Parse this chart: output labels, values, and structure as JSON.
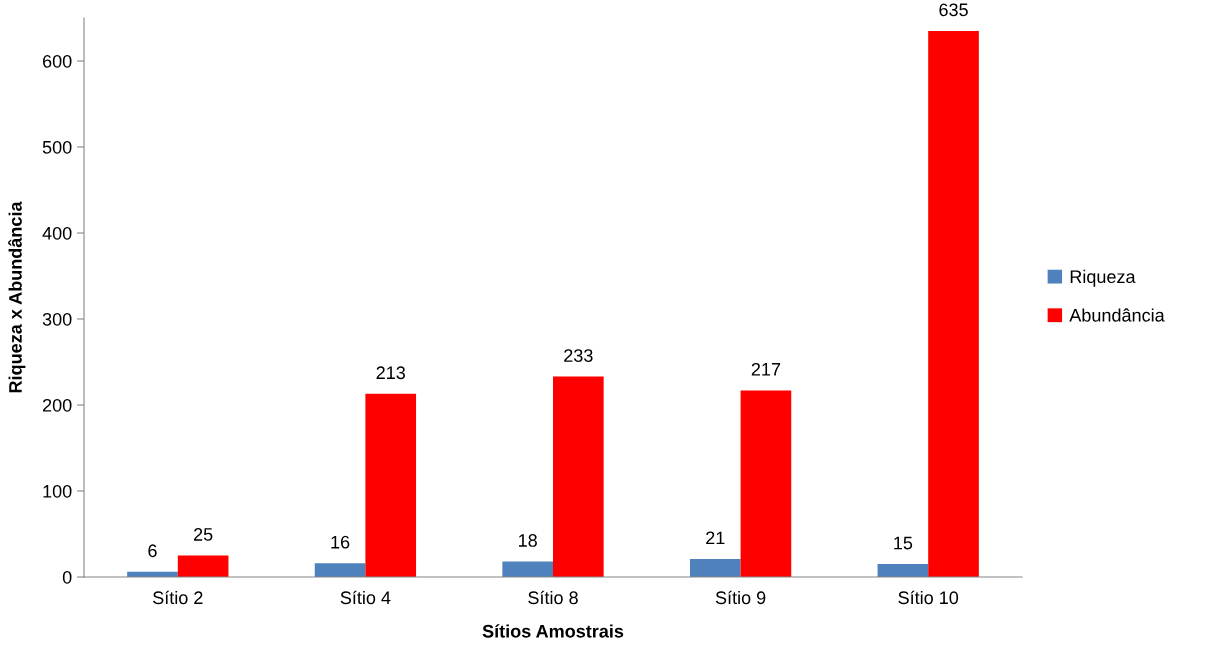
{
  "chart_data": {
    "type": "bar",
    "xlabel": "Sítios Amostrais",
    "ylabel": "Riqueza x Abundância",
    "categories": [
      "Sítio 2",
      "Sítio 4",
      "Sítio 8",
      "Sítio 9",
      "Sítio 10"
    ],
    "series": [
      {
        "name": "Riqueza",
        "color": "#4f81bd",
        "values": [
          6,
          16,
          18,
          21,
          15
        ]
      },
      {
        "name": "Abundância",
        "color": "#ff0000",
        "values": [
          25,
          213,
          233,
          217,
          635
        ]
      }
    ],
    "ylim": [
      0,
      650
    ],
    "yticks": [
      0,
      100,
      200,
      300,
      400,
      500,
      600
    ],
    "grid": false,
    "legend": "right",
    "data_labels": true
  }
}
